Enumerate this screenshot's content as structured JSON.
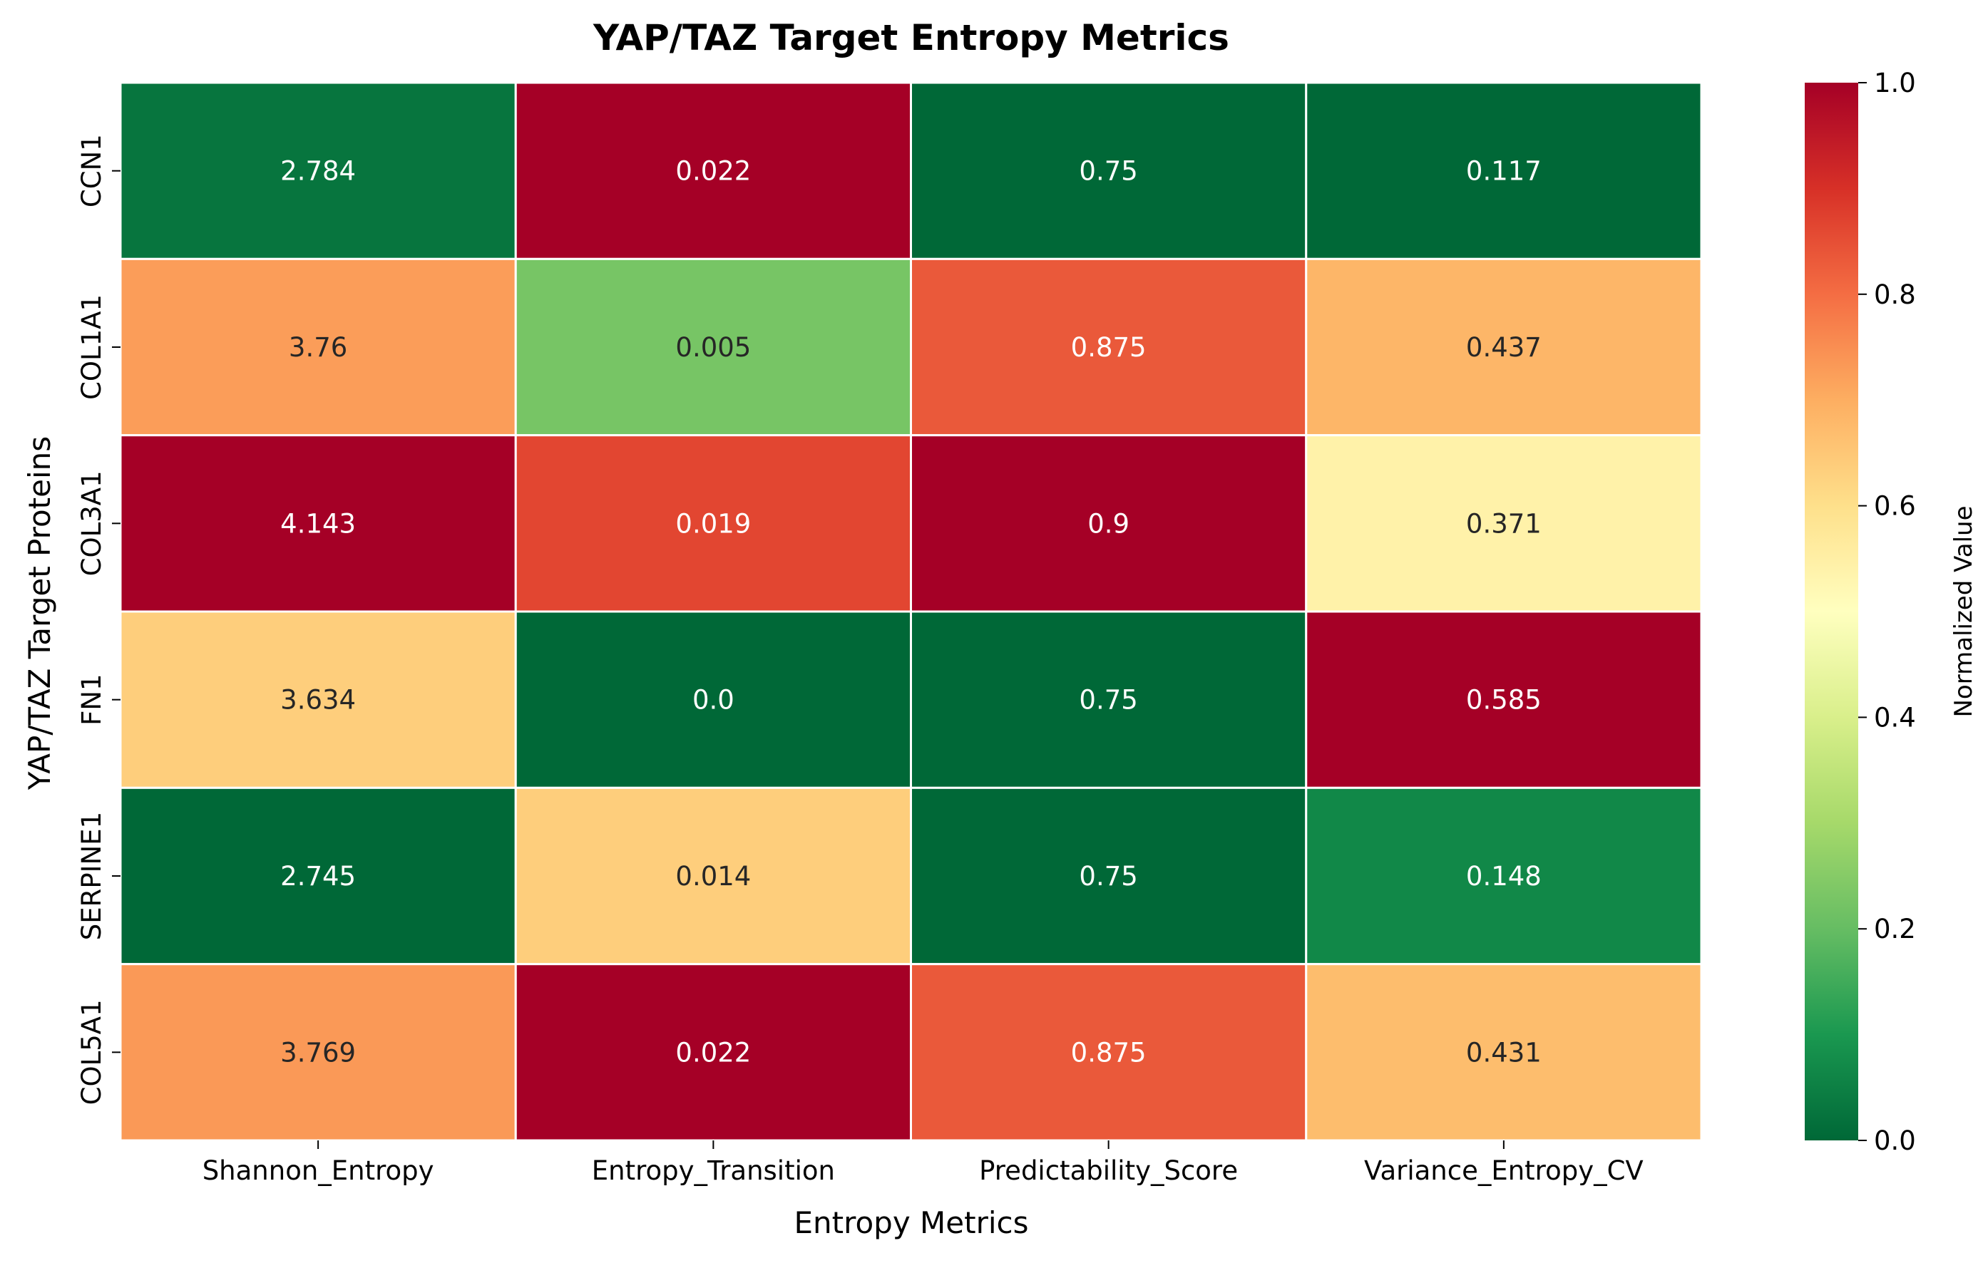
{
  "chart_data": {
    "type": "heatmap",
    "title": "YAP/TAZ Target Entropy Metrics",
    "xlabel": "Entropy Metrics",
    "ylabel": "YAP/TAZ Target Proteins",
    "columns": [
      "Shannon_Entropy",
      "Entropy_Transition",
      "Predictability_Score",
      "Variance_Entropy_CV"
    ],
    "rows": [
      "CCN1",
      "COL1A1",
      "COL3A1",
      "FN1",
      "SERPINE1",
      "COL5A1"
    ],
    "values": [
      [
        2.784,
        0.022,
        0.75,
        0.117
      ],
      [
        3.76,
        0.005,
        0.875,
        0.437
      ],
      [
        4.143,
        0.019,
        0.9,
        0.371
      ],
      [
        3.634,
        0.0,
        0.75,
        0.585
      ],
      [
        2.745,
        0.014,
        0.75,
        0.148
      ],
      [
        3.769,
        0.022,
        0.875,
        0.431
      ]
    ],
    "value_labels": [
      [
        "2.784",
        "0.022",
        "0.75",
        "0.117"
      ],
      [
        "3.76",
        "0.005",
        "0.875",
        "0.437"
      ],
      [
        "4.143",
        "0.019",
        "0.9",
        "0.371"
      ],
      [
        "3.634",
        "0.0",
        "0.75",
        "0.585"
      ],
      [
        "2.745",
        "0.014",
        "0.75",
        "0.148"
      ],
      [
        "3.769",
        "0.022",
        "0.875",
        "0.431"
      ]
    ],
    "normalization": "per-column min-max",
    "colormap": "RdYlGn_r",
    "colorbar": {
      "label": "Normalized Value",
      "range": [
        0,
        1
      ],
      "ticks": [
        "0.0",
        "0.2",
        "0.4",
        "0.6",
        "0.8",
        "1.0"
      ]
    },
    "grid": false,
    "cell_border_color": "#ffffff"
  }
}
